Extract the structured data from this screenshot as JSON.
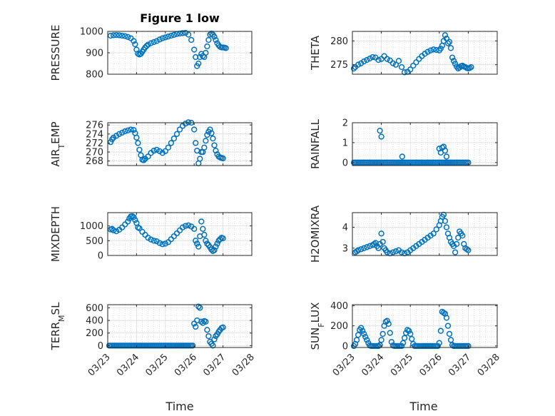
{
  "title": "Figure 1 low",
  "xlabel": "Time",
  "colors": {
    "marker": "#0072BD",
    "axis": "#262626",
    "grid": "#cccccc",
    "background": "#ffffff"
  },
  "chart_data": [
    {
      "type": "scatter",
      "title": "Figure 1 low",
      "ylabel": "PRESSURE",
      "ylabel_parts": [
        {
          "t": "PRESSURE",
          "s": ""
        }
      ],
      "ylim": [
        800,
        1000
      ],
      "yticks": [
        800,
        900,
        1000
      ],
      "xlim": [
        0,
        5
      ],
      "xticks": [
        "03/23",
        "03/24",
        "03/25",
        "03/26",
        "03/27",
        "03/28"
      ],
      "show_x_ticklabels": false,
      "grid": true,
      "minor_grid": true,
      "x": [
        0.1,
        0.2,
        0.3,
        0.4,
        0.5,
        0.6,
        0.7,
        0.8,
        0.9,
        0.95,
        1.0,
        1.05,
        1.1,
        1.15,
        1.2,
        1.25,
        1.3,
        1.35,
        1.4,
        1.5,
        1.6,
        1.7,
        1.8,
        1.9,
        2.0,
        2.1,
        2.2,
        2.3,
        2.4,
        2.5,
        2.6,
        2.7,
        2.8,
        2.9,
        3.0,
        3.05,
        3.1,
        3.15,
        3.2,
        3.25,
        3.3,
        3.35,
        3.4,
        3.45,
        3.5,
        3.55,
        3.6,
        3.65,
        3.7,
        3.75,
        3.8,
        3.85,
        3.9,
        3.95,
        4.0,
        4.05,
        4.1
      ],
      "values": [
        980,
        982,
        983,
        982,
        980,
        978,
        974,
        968,
        955,
        940,
        915,
        896,
        892,
        895,
        905,
        915,
        925,
        932,
        938,
        945,
        950,
        955,
        962,
        968,
        972,
        976,
        980,
        984,
        988,
        990,
        992,
        993,
        985,
        960,
        915,
        880,
        838,
        850,
        880,
        895,
        885,
        880,
        900,
        930,
        960,
        985,
        990,
        985,
        975,
        960,
        945,
        935,
        928,
        925,
        925,
        924,
        922
      ]
    },
    {
      "type": "scatter",
      "ylabel": "THETA",
      "ylabel_parts": [
        {
          "t": "THETA",
          "s": ""
        }
      ],
      "ylim": [
        273,
        282
      ],
      "yticks": [
        275,
        280
      ],
      "xlim": [
        0,
        5
      ],
      "xticks": [
        "03/23",
        "03/24",
        "03/25",
        "03/26",
        "03/27",
        "03/28"
      ],
      "show_x_ticklabels": false,
      "grid": true,
      "minor_grid": true,
      "x": [
        0.05,
        0.1,
        0.2,
        0.3,
        0.4,
        0.5,
        0.6,
        0.7,
        0.8,
        0.9,
        1.0,
        1.1,
        1.2,
        1.3,
        1.4,
        1.5,
        1.6,
        1.7,
        1.8,
        1.9,
        2.0,
        2.1,
        2.2,
        2.3,
        2.4,
        2.5,
        2.6,
        2.7,
        2.8,
        2.9,
        3.0,
        3.05,
        3.1,
        3.15,
        3.2,
        3.25,
        3.3,
        3.35,
        3.4,
        3.45,
        3.5,
        3.55,
        3.6,
        3.65,
        3.7,
        3.75,
        3.8,
        3.85,
        3.9,
        3.95,
        4.0,
        4.05,
        4.1
      ],
      "values": [
        274.2,
        274.5,
        275.0,
        275.3,
        275.7,
        276.0,
        276.3,
        276.6,
        276.5,
        276.0,
        276.2,
        276.8,
        276.2,
        275.9,
        275.3,
        275.0,
        275.8,
        274.5,
        273.4,
        273.5,
        274.0,
        274.8,
        275.5,
        276.2,
        276.8,
        277.3,
        277.7,
        278.0,
        278.2,
        278.1,
        278.0,
        278.4,
        279.0,
        280.0,
        281.2,
        280.5,
        279.5,
        279.8,
        278.5,
        276.5,
        275.8,
        275.2,
        274.6,
        274.2,
        274.4,
        274.7,
        274.8,
        274.6,
        274.5,
        274.3,
        274.2,
        274.3,
        274.5
      ]
    },
    {
      "type": "scatter",
      "ylabel": "AIR_TEMP",
      "ylabel_parts": [
        {
          "t": "AIR",
          "s": ""
        },
        {
          "t": "T",
          "s": "sub"
        },
        {
          "t": "EMP",
          "s": ""
        }
      ],
      "ylim": [
        267,
        276.5
      ],
      "yticks": [
        268,
        270,
        272,
        274,
        276
      ],
      "xlim": [
        0,
        5
      ],
      "xticks": [
        "03/23",
        "03/24",
        "03/25",
        "03/26",
        "03/27",
        "03/28"
      ],
      "show_x_ticklabels": false,
      "grid": true,
      "minor_grid": true,
      "x": [
        0.1,
        0.15,
        0.2,
        0.3,
        0.4,
        0.5,
        0.6,
        0.7,
        0.8,
        0.9,
        0.95,
        1.0,
        1.05,
        1.1,
        1.15,
        1.2,
        1.25,
        1.3,
        1.4,
        1.5,
        1.6,
        1.7,
        1.8,
        1.9,
        2.0,
        2.1,
        2.2,
        2.3,
        2.4,
        2.5,
        2.6,
        2.7,
        2.8,
        2.9,
        3.0,
        3.05,
        3.1,
        3.15,
        3.2,
        3.25,
        3.3,
        3.35,
        3.4,
        3.45,
        3.5,
        3.55,
        3.6,
        3.65,
        3.7,
        3.75,
        3.8,
        3.85,
        3.9,
        3.95,
        4.0
      ],
      "values": [
        272.2,
        272.8,
        273.2,
        273.6,
        274.0,
        274.3,
        274.6,
        274.8,
        275.0,
        274.9,
        274.2,
        273.2,
        272.0,
        270.5,
        269.3,
        268.3,
        268.2,
        268.5,
        269.0,
        269.8,
        270.3,
        270.5,
        270.2,
        269.8,
        270.2,
        271.0,
        272.0,
        273.0,
        274.0,
        275.0,
        275.8,
        276.3,
        276.6,
        276.5,
        275.0,
        272.0,
        270.3,
        267.5,
        268.5,
        270.0,
        270.0,
        271.0,
        272.5,
        273.8,
        274.5,
        275.0,
        274.2,
        273.0,
        271.5,
        270.3,
        269.5,
        269.0,
        268.8,
        268.7,
        268.6
      ]
    },
    {
      "type": "scatter",
      "ylabel": "RAINFALL",
      "ylabel_parts": [
        {
          "t": "RAINFALL",
          "s": ""
        }
      ],
      "ylim": [
        -0.15,
        2
      ],
      "yticks": [
        0,
        1,
        2
      ],
      "xlim": [
        0,
        5
      ],
      "xticks": [
        "03/23",
        "03/24",
        "03/25",
        "03/26",
        "03/27",
        "03/28"
      ],
      "show_x_ticklabels": false,
      "grid": true,
      "minor_grid": true,
      "x": [
        0.05,
        0.1,
        0.15,
        0.2,
        0.25,
        0.3,
        0.35,
        0.4,
        0.45,
        0.5,
        0.55,
        0.6,
        0.65,
        0.7,
        0.75,
        0.8,
        0.85,
        0.9,
        0.95,
        1.0,
        1.05,
        1.1,
        1.15,
        1.2,
        1.25,
        1.3,
        1.35,
        1.4,
        1.45,
        1.5,
        1.55,
        1.6,
        1.65,
        1.7,
        1.75,
        1.8,
        1.85,
        1.9,
        1.95,
        2.0,
        2.05,
        2.1,
        2.15,
        2.2,
        2.25,
        2.3,
        2.35,
        2.4,
        2.45,
        2.5,
        2.55,
        2.6,
        2.65,
        2.7,
        2.75,
        2.8,
        2.85,
        2.9,
        2.95,
        3.0,
        3.05,
        3.1,
        3.15,
        3.2,
        3.25,
        3.3,
        3.35,
        3.4,
        3.45,
        3.5,
        3.55,
        3.6,
        3.65,
        3.7,
        3.75,
        3.8,
        3.85,
        3.9,
        3.95,
        4.0,
        0.95,
        1.0,
        1.72,
        3.0,
        3.05,
        3.1,
        3.15,
        3.2,
        3.25
      ],
      "values": [
        0,
        0,
        0,
        0,
        0,
        0,
        0,
        0,
        0,
        0,
        0,
        0,
        0,
        0,
        0,
        0,
        0,
        0,
        0,
        0,
        0,
        0,
        0,
        0,
        0,
        0,
        0,
        0,
        0,
        0,
        0,
        0,
        0,
        0,
        0,
        0,
        0,
        0,
        0,
        0,
        0,
        0,
        0,
        0,
        0,
        0,
        0,
        0,
        0,
        0,
        0,
        0,
        0,
        0,
        0,
        0,
        0,
        0,
        0,
        0,
        0,
        0,
        0,
        0,
        0,
        0,
        0,
        0,
        0,
        0,
        0,
        0,
        0,
        0,
        0,
        0,
        0,
        0,
        0,
        0,
        1.6,
        1.3,
        0.3,
        0.7,
        0.5,
        0.75,
        0.8,
        0.6,
        0.3
      ]
    },
    {
      "type": "scatter",
      "ylabel": "MIXDEPTH",
      "ylabel_parts": [
        {
          "t": "MIXDEPTH",
          "s": ""
        }
      ],
      "ylim": [
        0,
        1450
      ],
      "yticks": [
        0,
        500,
        1000
      ],
      "xlim": [
        0,
        5
      ],
      "xticks": [
        "03/23",
        "03/24",
        "03/25",
        "03/26",
        "03/27",
        "03/28"
      ],
      "show_x_ticklabels": false,
      "grid": true,
      "minor_grid": true,
      "x": [
        0.1,
        0.15,
        0.2,
        0.3,
        0.4,
        0.5,
        0.6,
        0.7,
        0.75,
        0.8,
        0.85,
        0.9,
        0.95,
        1.0,
        1.05,
        1.1,
        1.2,
        1.3,
        1.4,
        1.5,
        1.6,
        1.7,
        1.8,
        1.9,
        2.0,
        2.1,
        2.2,
        2.3,
        2.4,
        2.5,
        2.6,
        2.7,
        2.8,
        2.9,
        3.0,
        3.05,
        3.1,
        3.15,
        3.2,
        3.25,
        3.3,
        3.35,
        3.4,
        3.45,
        3.5,
        3.55,
        3.6,
        3.65,
        3.7,
        3.75,
        3.8,
        3.85,
        3.9,
        3.95,
        4.0
      ],
      "values": [
        880,
        900,
        850,
        820,
        870,
        950,
        1050,
        1150,
        1250,
        1320,
        1330,
        1300,
        1200,
        1100,
        950,
        920,
        800,
        700,
        600,
        540,
        500,
        480,
        420,
        380,
        400,
        450,
        550,
        650,
        750,
        850,
        950,
        1000,
        1020,
        980,
        900,
        500,
        400,
        300,
        650,
        1150,
        900,
        700,
        500,
        400,
        350,
        280,
        200,
        150,
        180,
        300,
        400,
        500,
        550,
        600,
        580
      ]
    },
    {
      "type": "scatter",
      "ylabel": "H2OMIXRA",
      "ylabel_parts": [
        {
          "t": "H2OMIXRA",
          "s": ""
        }
      ],
      "ylim": [
        2.65,
        4.7
      ],
      "yticks": [
        3,
        4
      ],
      "xlim": [
        0,
        5
      ],
      "xticks": [
        "03/23",
        "03/24",
        "03/25",
        "03/26",
        "03/27",
        "03/28"
      ],
      "show_x_ticklabels": false,
      "grid": true,
      "minor_grid": true,
      "x": [
        0.1,
        0.15,
        0.2,
        0.3,
        0.4,
        0.5,
        0.6,
        0.7,
        0.75,
        0.8,
        0.85,
        0.9,
        0.95,
        1.0,
        1.05,
        1.1,
        1.15,
        1.2,
        1.3,
        1.4,
        1.5,
        1.6,
        1.7,
        1.8,
        1.9,
        2.0,
        2.1,
        2.2,
        2.3,
        2.4,
        2.5,
        2.6,
        2.7,
        2.8,
        2.9,
        3.0,
        3.05,
        3.1,
        3.15,
        3.2,
        3.25,
        3.3,
        3.35,
        3.4,
        3.45,
        3.5,
        3.55,
        3.6,
        3.65,
        3.7,
        3.75,
        3.8,
        3.85,
        3.9,
        3.95,
        4.0
      ],
      "values": [
        2.8,
        2.85,
        2.9,
        2.95,
        3.0,
        3.05,
        3.1,
        3.15,
        3.2,
        3.25,
        3.1,
        3.0,
        3.2,
        3.7,
        3.3,
        3.0,
        2.9,
        2.8,
        2.75,
        2.8,
        2.85,
        2.9,
        2.8,
        2.75,
        2.8,
        2.9,
        3.0,
        3.1,
        3.2,
        3.3,
        3.4,
        3.5,
        3.6,
        3.7,
        3.9,
        4.1,
        4.3,
        4.5,
        4.6,
        4.3,
        4.0,
        3.7,
        3.5,
        3.3,
        3.2,
        3.1,
        2.8,
        3.2,
        3.5,
        3.8,
        3.7,
        3.6,
        3.2,
        3.0,
        2.95,
        2.9
      ]
    },
    {
      "type": "scatter",
      "ylabel": "TERR_MSL",
      "ylabel_parts": [
        {
          "t": "TERR",
          "s": ""
        },
        {
          "t": "M",
          "s": "sub"
        },
        {
          "t": "SL",
          "s": ""
        }
      ],
      "ylim": [
        -30,
        650
      ],
      "yticks": [
        0,
        200,
        400,
        600
      ],
      "xlim": [
        0,
        5
      ],
      "xticks": [
        "03/23",
        "03/24",
        "03/25",
        "03/26",
        "03/27",
        "03/28"
      ],
      "show_x_ticklabels": true,
      "grid": true,
      "minor_grid": true,
      "x": [
        0.05,
        0.1,
        0.15,
        0.2,
        0.25,
        0.3,
        0.35,
        0.4,
        0.45,
        0.5,
        0.55,
        0.6,
        0.65,
        0.7,
        0.75,
        0.8,
        0.85,
        0.9,
        0.95,
        1.0,
        1.05,
        1.1,
        1.15,
        1.2,
        1.25,
        1.3,
        1.35,
        1.4,
        1.45,
        1.5,
        1.55,
        1.6,
        1.65,
        1.7,
        1.75,
        1.8,
        1.85,
        1.9,
        1.95,
        2.0,
        2.05,
        2.1,
        2.15,
        2.2,
        2.25,
        2.3,
        2.35,
        2.4,
        2.45,
        2.5,
        2.55,
        2.6,
        2.65,
        2.7,
        2.75,
        2.8,
        2.85,
        2.9,
        2.95,
        3.0,
        3.05,
        3.1,
        3.15,
        3.2,
        3.25,
        3.3,
        3.35,
        3.4,
        3.45,
        3.5,
        3.55,
        3.6,
        3.65,
        3.7,
        3.75,
        3.8,
        3.85,
        3.9,
        3.95,
        4.0
      ],
      "values": [
        0,
        0,
        0,
        0,
        0,
        0,
        0,
        0,
        0,
        0,
        0,
        0,
        0,
        0,
        0,
        0,
        0,
        0,
        0,
        0,
        0,
        0,
        0,
        0,
        0,
        0,
        0,
        0,
        0,
        0,
        0,
        0,
        0,
        0,
        0,
        0,
        0,
        0,
        0,
        0,
        0,
        0,
        0,
        0,
        0,
        0,
        0,
        0,
        0,
        0,
        0,
        0,
        0,
        0,
        0,
        0,
        0,
        0,
        0,
        350,
        300,
        400,
        620,
        600,
        380,
        360,
        390,
        380,
        250,
        150,
        60,
        30,
        0,
        100,
        150,
        180,
        220,
        250,
        280,
        290
      ]
    },
    {
      "type": "scatter",
      "ylabel": "SUN_FLUX",
      "ylabel_parts": [
        {
          "t": "SUN",
          "s": ""
        },
        {
          "t": "F",
          "s": "sub"
        },
        {
          "t": "LUX",
          "s": ""
        }
      ],
      "ylim": [
        -15,
        410
      ],
      "yticks": [
        0,
        200,
        400
      ],
      "xlim": [
        0,
        5
      ],
      "xticks": [
        "03/23",
        "03/24",
        "03/25",
        "03/26",
        "03/27",
        "03/28"
      ],
      "show_x_ticklabels": true,
      "grid": true,
      "minor_grid": true,
      "x": [
        0.05,
        0.1,
        0.15,
        0.2,
        0.25,
        0.3,
        0.35,
        0.4,
        0.45,
        0.5,
        0.55,
        0.6,
        0.65,
        0.7,
        0.75,
        0.8,
        0.85,
        0.9,
        0.95,
        1.0,
        1.05,
        1.1,
        1.15,
        1.2,
        1.25,
        1.3,
        1.35,
        1.4,
        1.45,
        1.5,
        1.55,
        1.6,
        1.65,
        1.7,
        1.75,
        1.8,
        1.85,
        1.9,
        1.95,
        2.0,
        2.05,
        2.1,
        2.15,
        2.2,
        2.25,
        2.3,
        2.35,
        2.4,
        2.45,
        2.5,
        2.55,
        2.6,
        2.65,
        2.7,
        2.75,
        2.8,
        2.85,
        2.9,
        2.95,
        3.0,
        3.05,
        3.1,
        3.15,
        3.2,
        3.25,
        3.3,
        3.35,
        3.4,
        3.45,
        3.5,
        3.55,
        3.6,
        3.65,
        3.7,
        3.75,
        3.8,
        3.85,
        3.9,
        3.95,
        4.0
      ],
      "values": [
        0,
        20,
        60,
        110,
        160,
        180,
        150,
        120,
        90,
        60,
        30,
        5,
        0,
        0,
        0,
        0,
        0,
        0,
        10,
        60,
        120,
        200,
        240,
        250,
        220,
        130,
        40,
        5,
        0,
        0,
        0,
        0,
        0,
        0,
        30,
        80,
        130,
        160,
        150,
        120,
        70,
        20,
        0,
        0,
        0,
        0,
        0,
        0,
        0,
        0,
        0,
        0,
        0,
        0,
        0,
        0,
        0,
        0,
        0,
        30,
        150,
        340,
        330,
        320,
        280,
        200,
        120,
        60,
        10,
        0,
        0,
        0,
        0,
        0,
        0,
        0,
        0,
        0,
        0,
        0
      ]
    }
  ]
}
